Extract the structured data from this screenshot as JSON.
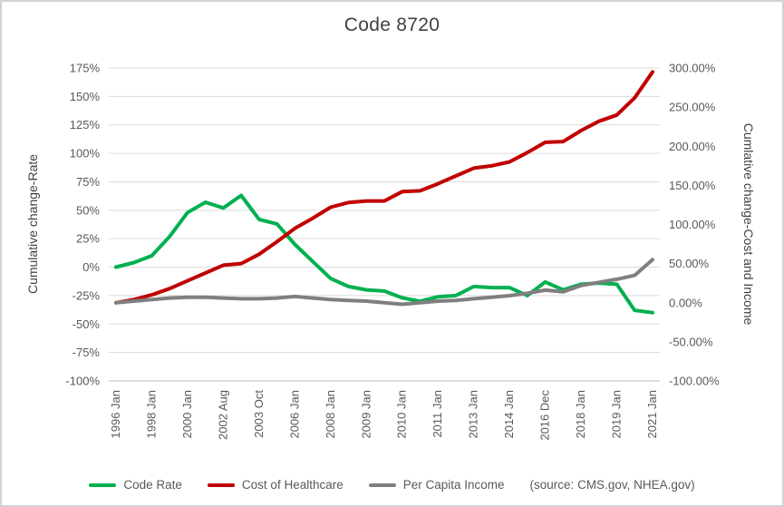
{
  "chart_data": {
    "type": "line",
    "title": "Code 8720",
    "left_axis": {
      "label": "Cumulative change-Rate",
      "min": -100,
      "max": 175,
      "step": 25,
      "tick_values": [
        175,
        150,
        125,
        100,
        75,
        50,
        25,
        0,
        -25,
        -50,
        -75,
        -100
      ],
      "tick_labels": [
        "175%",
        "150%",
        "125%",
        "100%",
        "75%",
        "50%",
        "25%",
        "0%",
        "-25%",
        "-50%",
        "-75%",
        "-100%"
      ]
    },
    "right_axis": {
      "label": "Cumlative change-Cost and Income",
      "min": -100,
      "max": 300,
      "step": 50,
      "tick_values": [
        300,
        250,
        200,
        150,
        100,
        50,
        0,
        -50,
        -100
      ],
      "tick_labels": [
        "300.00%",
        "250.00%",
        "200.00%",
        "150.00%",
        "100.00%",
        "50.00%",
        "0.00%",
        "-50.00%",
        "-100.00%"
      ]
    },
    "x_tick_labels": [
      "1996 Jan",
      "1998 Jan",
      "2000 Jan",
      "2002 Aug",
      "2003 Oct",
      "2006 Jan",
      "2008 Jan",
      "2009 Jan",
      "2010 Jan",
      "2011 Jan",
      "2013 Jan",
      "2014 Jan",
      "2016 Dec",
      "2018 Jan",
      "2019 Jan",
      "2021 Jan"
    ],
    "x_tick_indices": [
      0,
      2,
      4,
      6,
      8,
      10,
      12,
      14,
      16,
      18,
      20,
      22,
      24,
      26,
      28,
      30
    ],
    "series": [
      {
        "name": "Code Rate",
        "axis": "left",
        "color": "#00B050",
        "values": [
          0,
          4,
          10,
          27,
          48,
          57,
          52,
          63,
          42,
          38,
          20,
          5,
          -10,
          -17,
          -20,
          -21,
          -27,
          -30,
          -26,
          -25,
          -17,
          -18,
          -18,
          -25,
          -13,
          -20,
          -15,
          -14,
          -15,
          -38,
          -40
        ]
      },
      {
        "name": "Cost of Healthcare",
        "axis": "right",
        "color": "#C00000",
        "values": [
          0,
          4,
          10,
          18,
          28,
          38,
          48,
          50,
          62,
          78,
          95,
          108,
          122,
          128,
          130,
          130,
          142,
          143,
          152,
          162,
          172,
          175,
          180,
          192,
          205,
          206,
          220,
          232,
          240,
          262,
          295
        ]
      },
      {
        "name": "Per Capita Income",
        "axis": "right",
        "color": "#7F7F7F",
        "values": [
          0,
          2,
          4,
          6,
          7,
          7,
          6,
          5,
          5,
          6,
          8,
          6,
          4,
          3,
          2,
          0,
          -2,
          0,
          2,
          3,
          5,
          7,
          9,
          12,
          16,
          14,
          22,
          26,
          30,
          35,
          55
        ]
      }
    ],
    "source_note": "(source: CMS.gov, NHEA.gov)",
    "gridline_color": "#d9d9d9",
    "axis_line_color": "#bfbfbf",
    "legend_position": "bottom",
    "grid": "horizontal-only"
  }
}
